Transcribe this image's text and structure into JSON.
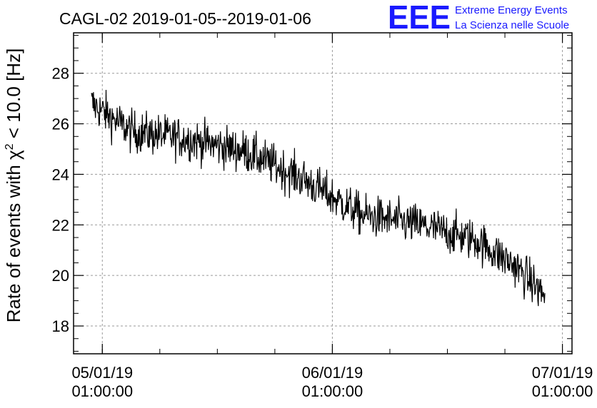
{
  "chart_data": {
    "type": "line",
    "title": "CAGL-02 2019-01-05--2019-01-06",
    "ylabel": {
      "prefix": "Rate of events with ",
      "symbol": "χ",
      "superscript": "2",
      "suffix": " < 10.0 [Hz]"
    },
    "xlabel": "",
    "ylim": [
      16.9,
      29.6
    ],
    "yticks": [
      18,
      20,
      22,
      24,
      26,
      28
    ],
    "ytick_labels": [
      "18",
      "20",
      "22",
      "24",
      "26",
      "28"
    ],
    "xlim": [
      "2019-01-04T22:00:00",
      "2019-01-07T02:00:00"
    ],
    "xticks": [
      {
        "date": "05/01/19",
        "time": "01:00:00",
        "t": "2019-01-05T01:00:00"
      },
      {
        "date": "06/01/19",
        "time": "01:00:00",
        "t": "2019-01-06T01:00:00"
      },
      {
        "date": "07/01/19",
        "time": "01:00:00",
        "t": "2019-01-07T01:00:00"
      }
    ],
    "grid": true,
    "series": [
      {
        "x_range": [
          "2019-01-04T23:52:00",
          "2019-01-06T23:10:00"
        ],
        "trend": [
          {
            "t": "2019-01-04T23:52:00",
            "y": 26.8
          },
          {
            "t": "2019-01-05T04:00:00",
            "y": 25.7
          },
          {
            "t": "2019-01-05T10:00:00",
            "y": 25.4
          },
          {
            "t": "2019-01-05T16:00:00",
            "y": 24.9
          },
          {
            "t": "2019-01-05T22:00:00",
            "y": 23.8
          },
          {
            "t": "2019-01-06T04:00:00",
            "y": 22.4
          },
          {
            "t": "2019-01-06T10:00:00",
            "y": 22.0
          },
          {
            "t": "2019-01-06T16:00:00",
            "y": 21.4
          },
          {
            "t": "2019-01-06T20:00:00",
            "y": 20.4
          },
          {
            "t": "2019-01-06T23:10:00",
            "y": 19.2
          }
        ],
        "noise_amplitude": 0.75,
        "color": "#000000"
      }
    ]
  },
  "logo": {
    "mark": "EEE",
    "line1": "Extreme Energy Events",
    "line2": "La Scienza nelle Scuole",
    "color": "#1a1aff"
  }
}
